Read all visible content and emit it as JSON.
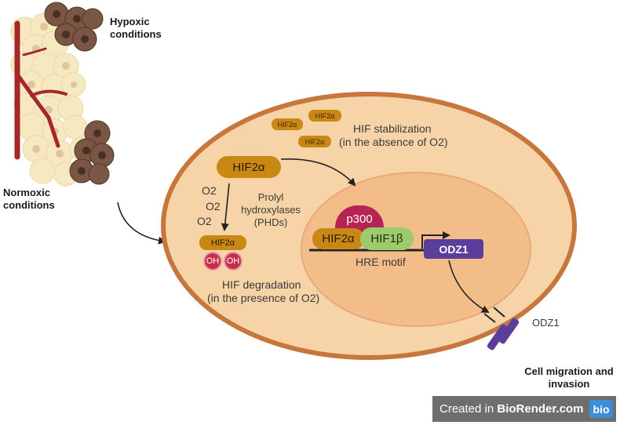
{
  "labels": {
    "hypoxic": "Hypoxic conditions",
    "normoxic": "Normoxic conditions",
    "hif_stabilization": "HIF stabilization",
    "absence": "(in the absence of O2)",
    "o2": "O2",
    "phd": "Prolyl hydroxylases (PHDs)",
    "hif_degradation": "HIF degradation",
    "presence": "(in the presence of O2)",
    "hre_motif": "HRE motif",
    "odz1_receptor": "ODZ1",
    "cell_migration": "Cell migration and invasion"
  },
  "proteins": {
    "hif2a": "HIF2α",
    "hif1b": "HIF1β",
    "p300": "p300",
    "oh": "OH",
    "odz1_gene": "ODZ1"
  },
  "brand": {
    "prefix": "Created in",
    "name": "BioRender.com",
    "logo": "bio"
  },
  "colors": {
    "cell_fill": "#f7d3a8",
    "cell_border": "#c7763d",
    "nucleus_fill": "#f3bd8a",
    "hif_fill": "#c98714",
    "hif1b_fill": "#9ccb6d",
    "p300_fill": "#b52452",
    "oh_fill": "#c62f4a",
    "gene_fill": "#5b3e9c",
    "tissue_light": "#f6e8c0",
    "tissue_dark": "#7b5644",
    "vessel": "#a6262b"
  }
}
